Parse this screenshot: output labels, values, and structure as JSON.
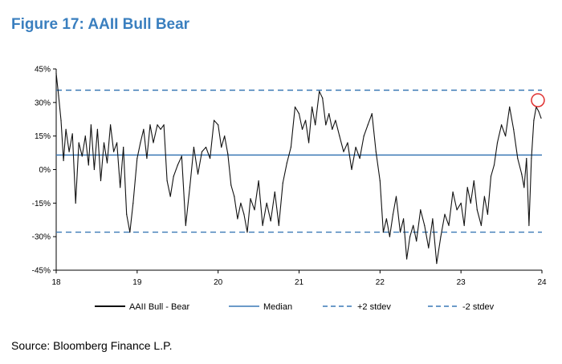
{
  "figure_title": "Figure 17: AAII Bull Bear",
  "source": "Source: Bloomberg Finance L.P.",
  "colors": {
    "title": "#3a7fbf",
    "series": "#111111",
    "median": "#3a78b5",
    "stdev": "#3a78b5",
    "highlight": "#e03030"
  },
  "chart_data": {
    "type": "line",
    "title": "Figure 17: AAII Bull Bear",
    "xlabel": "",
    "ylabel": "",
    "xlim": [
      2018,
      2024
    ],
    "ylim": [
      -45,
      45
    ],
    "x_ticks": [
      18,
      19,
      20,
      21,
      22,
      23,
      24
    ],
    "y_ticks": [
      45,
      30,
      15,
      0,
      -15,
      -30,
      -45
    ],
    "y_tick_labels": [
      "45%",
      "30%",
      "15%",
      "0%",
      "-15%",
      "-30%",
      "-45%"
    ],
    "grid": false,
    "legend_position": "bottom",
    "series": [
      {
        "name": "AAII Bull - Bear",
        "points": [
          [
            2018.0,
            43
          ],
          [
            2018.03,
            33
          ],
          [
            2018.06,
            22
          ],
          [
            2018.09,
            4
          ],
          [
            2018.12,
            18
          ],
          [
            2018.16,
            8
          ],
          [
            2018.2,
            16
          ],
          [
            2018.24,
            -15
          ],
          [
            2018.28,
            12
          ],
          [
            2018.32,
            6
          ],
          [
            2018.36,
            15
          ],
          [
            2018.4,
            2
          ],
          [
            2018.43,
            20
          ],
          [
            2018.47,
            0
          ],
          [
            2018.51,
            18
          ],
          [
            2018.55,
            -5
          ],
          [
            2018.59,
            12
          ],
          [
            2018.63,
            3
          ],
          [
            2018.67,
            20
          ],
          [
            2018.71,
            8
          ],
          [
            2018.75,
            12
          ],
          [
            2018.79,
            -8
          ],
          [
            2018.83,
            10
          ],
          [
            2018.87,
            -20
          ],
          [
            2018.91,
            -28
          ],
          [
            2018.95,
            -15
          ],
          [
            2019.0,
            5
          ],
          [
            2019.04,
            12
          ],
          [
            2019.08,
            18
          ],
          [
            2019.12,
            5
          ],
          [
            2019.16,
            20
          ],
          [
            2019.2,
            12
          ],
          [
            2019.25,
            20
          ],
          [
            2019.29,
            18
          ],
          [
            2019.33,
            20
          ],
          [
            2019.37,
            -5
          ],
          [
            2019.41,
            -12
          ],
          [
            2019.45,
            -3
          ],
          [
            2019.5,
            2
          ],
          [
            2019.55,
            6
          ],
          [
            2019.6,
            -25
          ],
          [
            2019.65,
            -8
          ],
          [
            2019.7,
            10
          ],
          [
            2019.75,
            -2
          ],
          [
            2019.8,
            8
          ],
          [
            2019.85,
            10
          ],
          [
            2019.9,
            5
          ],
          [
            2019.95,
            22
          ],
          [
            2020.0,
            20
          ],
          [
            2020.04,
            10
          ],
          [
            2020.08,
            15
          ],
          [
            2020.12,
            7
          ],
          [
            2020.16,
            -7
          ],
          [
            2020.2,
            -12
          ],
          [
            2020.24,
            -22
          ],
          [
            2020.28,
            -15
          ],
          [
            2020.32,
            -20
          ],
          [
            2020.36,
            -28
          ],
          [
            2020.4,
            -13
          ],
          [
            2020.45,
            -18
          ],
          [
            2020.5,
            -5
          ],
          [
            2020.55,
            -25
          ],
          [
            2020.6,
            -15
          ],
          [
            2020.65,
            -23
          ],
          [
            2020.7,
            -10
          ],
          [
            2020.75,
            -25
          ],
          [
            2020.8,
            -6
          ],
          [
            2020.85,
            3
          ],
          [
            2020.9,
            10
          ],
          [
            2020.95,
            28
          ],
          [
            2021.0,
            25
          ],
          [
            2021.04,
            18
          ],
          [
            2021.08,
            22
          ],
          [
            2021.12,
            12
          ],
          [
            2021.16,
            28
          ],
          [
            2021.2,
            20
          ],
          [
            2021.25,
            35
          ],
          [
            2021.29,
            32
          ],
          [
            2021.33,
            20
          ],
          [
            2021.37,
            25
          ],
          [
            2021.41,
            18
          ],
          [
            2021.45,
            22
          ],
          [
            2021.5,
            15
          ],
          [
            2021.55,
            8
          ],
          [
            2021.6,
            12
          ],
          [
            2021.65,
            0
          ],
          [
            2021.7,
            10
          ],
          [
            2021.75,
            5
          ],
          [
            2021.8,
            15
          ],
          [
            2021.85,
            20
          ],
          [
            2021.9,
            25
          ],
          [
            2021.95,
            8
          ],
          [
            2022.0,
            -5
          ],
          [
            2022.04,
            -28
          ],
          [
            2022.08,
            -22
          ],
          [
            2022.12,
            -30
          ],
          [
            2022.16,
            -20
          ],
          [
            2022.2,
            -12
          ],
          [
            2022.25,
            -28
          ],
          [
            2022.29,
            -22
          ],
          [
            2022.33,
            -40
          ],
          [
            2022.37,
            -30
          ],
          [
            2022.41,
            -25
          ],
          [
            2022.45,
            -32
          ],
          [
            2022.5,
            -18
          ],
          [
            2022.55,
            -25
          ],
          [
            2022.6,
            -35
          ],
          [
            2022.65,
            -22
          ],
          [
            2022.7,
            -42
          ],
          [
            2022.75,
            -30
          ],
          [
            2022.8,
            -20
          ],
          [
            2022.85,
            -25
          ],
          [
            2022.9,
            -10
          ],
          [
            2022.95,
            -18
          ],
          [
            2023.0,
            -15
          ],
          [
            2023.04,
            -25
          ],
          [
            2023.08,
            -8
          ],
          [
            2023.12,
            -15
          ],
          [
            2023.16,
            -5
          ],
          [
            2023.2,
            -18
          ],
          [
            2023.25,
            -25
          ],
          [
            2023.29,
            -12
          ],
          [
            2023.33,
            -20
          ],
          [
            2023.37,
            -3
          ],
          [
            2023.41,
            2
          ],
          [
            2023.45,
            12
          ],
          [
            2023.5,
            20
          ],
          [
            2023.55,
            15
          ],
          [
            2023.6,
            28
          ],
          [
            2023.65,
            18
          ],
          [
            2023.7,
            5
          ],
          [
            2023.75,
            -2
          ],
          [
            2023.78,
            -8
          ],
          [
            2023.81,
            5
          ],
          [
            2023.84,
            -25
          ],
          [
            2023.87,
            5
          ],
          [
            2023.9,
            22
          ],
          [
            2023.93,
            28
          ],
          [
            2023.96,
            26
          ],
          [
            2023.99,
            23
          ]
        ]
      },
      {
        "name": "Median",
        "value": 6.5
      },
      {
        "name": "+2 stdev",
        "value": 35.5
      },
      {
        "name": "-2 stdev",
        "value": -28
      }
    ],
    "highlight": {
      "x": 2023.95,
      "y": 31
    },
    "legend": [
      "AAII Bull - Bear",
      "Median",
      "+2 stdev",
      "-2 stdev"
    ]
  }
}
